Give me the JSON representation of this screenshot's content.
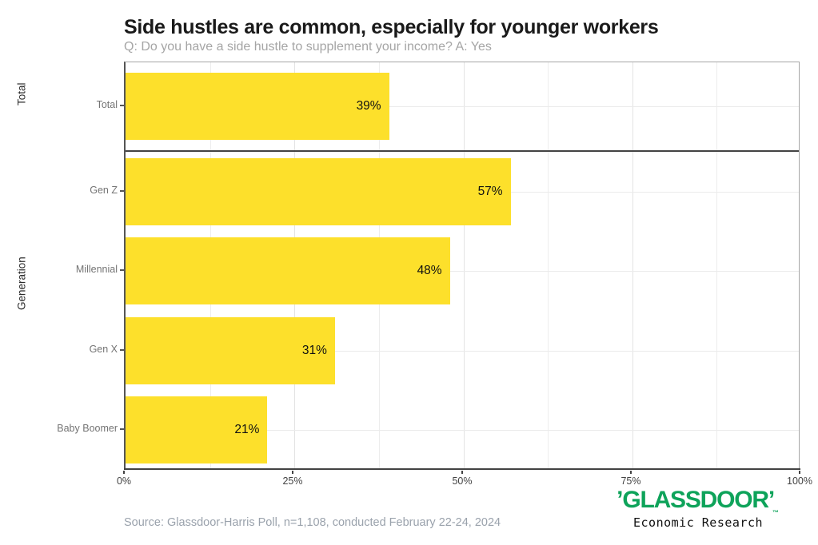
{
  "header": {
    "title": "Side hustles are common, especially for younger workers",
    "subtitle": "Q: Do you have a side hustle to supplement your income? A: Yes"
  },
  "chart_data": {
    "type": "bar",
    "orientation": "horizontal",
    "bar_color": "#FDE02B",
    "value_label_color": "#111111",
    "x_axis": {
      "range": [
        0,
        100
      ],
      "tick_values": [
        0,
        25,
        50,
        75,
        100
      ],
      "tick_labels": [
        "0%",
        "25%",
        "50%",
        "75%",
        "100%"
      ],
      "minor_step": 12.5,
      "grid": true
    },
    "facets": [
      {
        "label": "Total",
        "rows": [
          {
            "category": "Total",
            "value": 39,
            "value_label": "39%"
          }
        ]
      },
      {
        "label": "Generation",
        "rows": [
          {
            "category": "Gen Z",
            "value": 57,
            "value_label": "57%"
          },
          {
            "category": "Millennial",
            "value": 48,
            "value_label": "48%"
          },
          {
            "category": "Gen X",
            "value": 31,
            "value_label": "31%"
          },
          {
            "category": "Baby Boomer",
            "value": 21,
            "value_label": "21%"
          }
        ]
      }
    ]
  },
  "footer": {
    "source": "Source: Glassdoor-Harris Poll, n=1,108, conducted February 22-24, 2024",
    "brand": {
      "left_quote": "’",
      "wordmark": "GLASSDOOR",
      "right_quote": "’",
      "trademark": "™",
      "tagline": "Economic Research",
      "green": "#0EA35A"
    }
  }
}
